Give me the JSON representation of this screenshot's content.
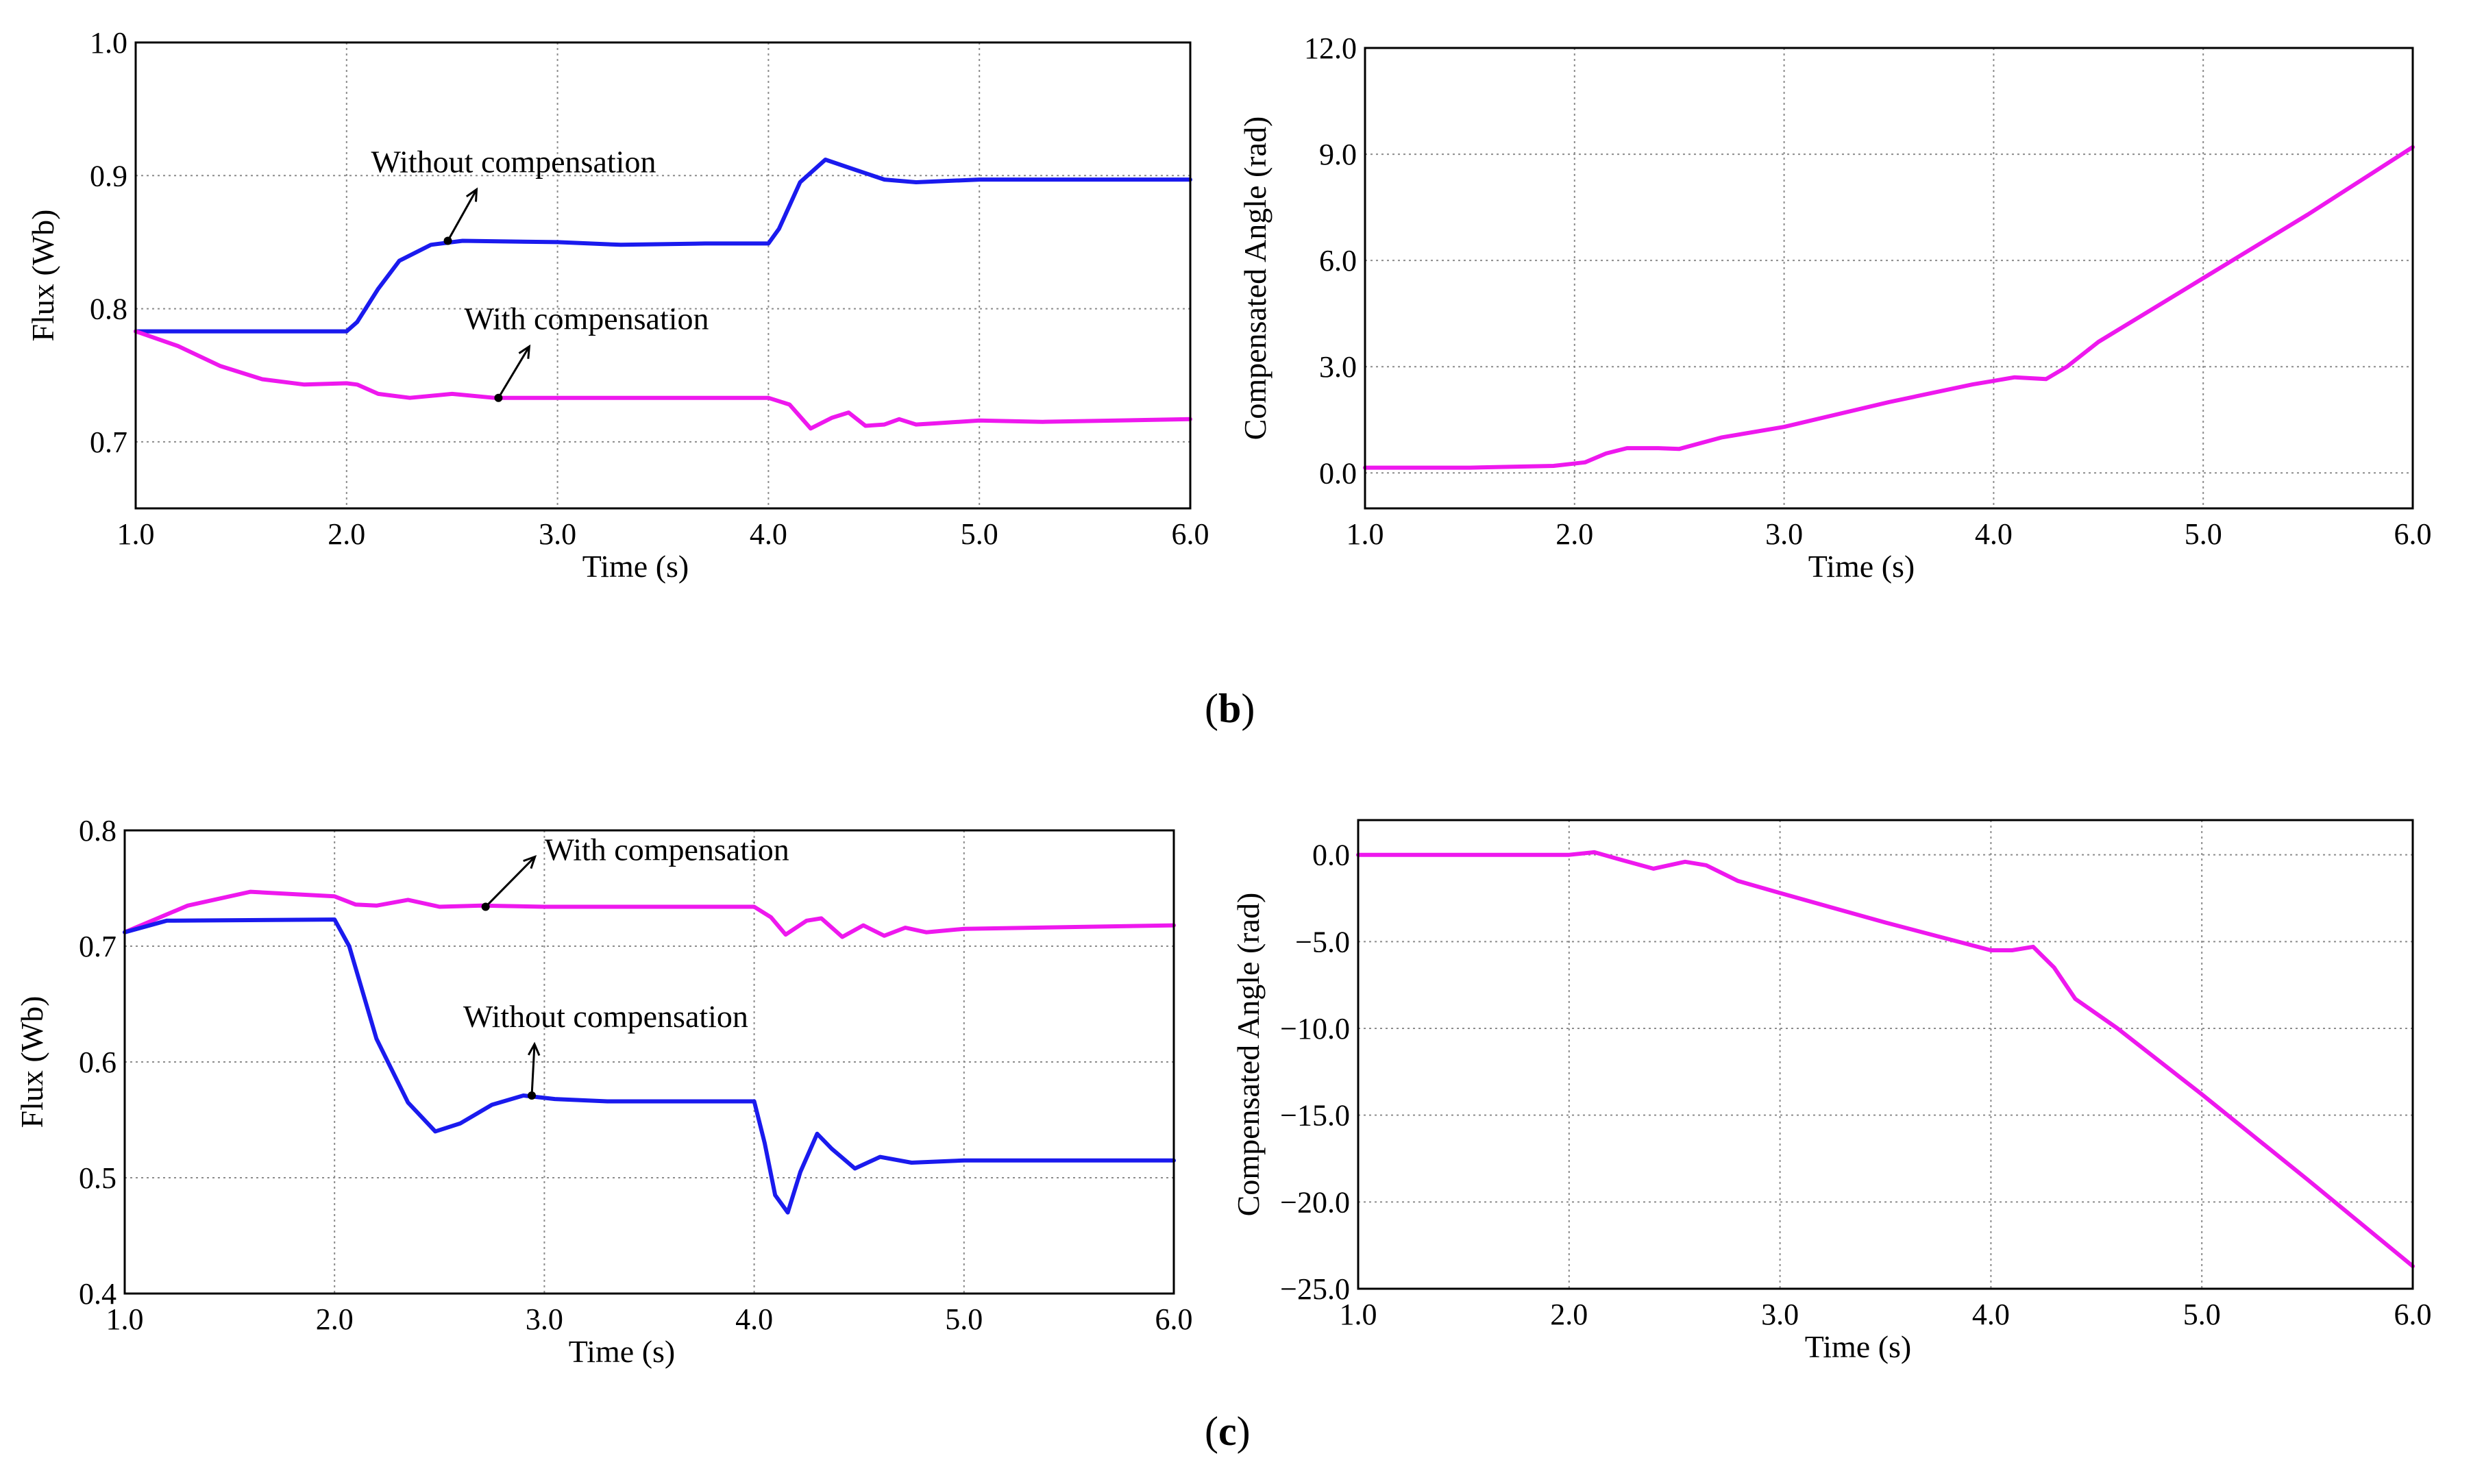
{
  "figure": {
    "caption_b": "b",
    "caption_c": "c"
  },
  "colors": {
    "blue": "#1a1aee",
    "magenta": "#ee18ee",
    "grid": "#8c8c8c"
  },
  "chart_data": [
    {
      "id": "b-flux",
      "type": "line",
      "xlabel": "Time (s)",
      "ylabel": "Flux (Wb)",
      "xlim": [
        1.0,
        6.0
      ],
      "ylim": [
        0.65,
        1.0
      ],
      "xticks": [
        1.0,
        2.0,
        3.0,
        4.0,
        5.0,
        6.0
      ],
      "xtick_labels": [
        "1.0",
        "2.0",
        "3.0",
        "4.0",
        "5.0",
        "6.0"
      ],
      "yticks": [
        0.7,
        0.8,
        0.9,
        1.0
      ],
      "ytick_labels": [
        "0.7",
        "0.8",
        "0.9",
        "1.0"
      ],
      "series": [
        {
          "name": "Without compensation",
          "color": "blue",
          "x": [
            1.0,
            2.0,
            2.05,
            2.15,
            2.25,
            2.4,
            2.55,
            3.0,
            3.3,
            3.7,
            4.0,
            4.05,
            4.15,
            4.27,
            4.4,
            4.55,
            4.7,
            5.0,
            6.0
          ],
          "y": [
            0.783,
            0.783,
            0.79,
            0.815,
            0.836,
            0.848,
            0.851,
            0.85,
            0.848,
            0.849,
            0.849,
            0.86,
            0.895,
            0.912,
            0.905,
            0.897,
            0.895,
            0.897,
            0.897
          ]
        },
        {
          "name": "With compensation",
          "color": "magenta",
          "x": [
            1.0,
            1.2,
            1.4,
            1.6,
            1.8,
            2.0,
            2.05,
            2.15,
            2.3,
            2.5,
            2.7,
            3.0,
            4.0,
            4.1,
            4.2,
            4.3,
            4.38,
            4.46,
            4.55,
            4.62,
            4.7,
            4.8,
            5.0,
            5.3,
            6.0
          ],
          "y": [
            0.783,
            0.772,
            0.757,
            0.747,
            0.743,
            0.744,
            0.743,
            0.736,
            0.733,
            0.736,
            0.733,
            0.733,
            0.733,
            0.728,
            0.71,
            0.718,
            0.722,
            0.712,
            0.713,
            0.717,
            0.713,
            0.714,
            0.716,
            0.715,
            0.717
          ]
        }
      ],
      "annotations": [
        {
          "text": "Without compensation",
          "x": 2.48,
          "y": 0.851
        },
        {
          "text": "With compensation",
          "x": 2.72,
          "y": 0.733
        }
      ]
    },
    {
      "id": "b-angle",
      "type": "line",
      "xlabel": "Time (s)",
      "ylabel": "Compensated Angle (rad)",
      "xlim": [
        1.0,
        6.0
      ],
      "ylim": [
        -1.0,
        12.0
      ],
      "xticks": [
        1.0,
        2.0,
        3.0,
        4.0,
        5.0,
        6.0
      ],
      "xtick_labels": [
        "1.0",
        "2.0",
        "3.0",
        "4.0",
        "5.0",
        "6.0"
      ],
      "yticks": [
        0.0,
        3.0,
        6.0,
        9.0,
        12.0
      ],
      "ytick_labels": [
        "0.0",
        "3.0",
        "6.0",
        "9.0",
        "12.0"
      ],
      "series": [
        {
          "name": "Compensated Angle",
          "color": "magenta",
          "x": [
            1.0,
            1.5,
            1.9,
            2.05,
            2.15,
            2.25,
            2.4,
            2.5,
            2.7,
            3.0,
            3.5,
            3.9,
            4.0,
            4.1,
            4.25,
            4.35,
            4.5,
            5.0,
            5.5,
            6.0
          ],
          "y": [
            0.15,
            0.15,
            0.2,
            0.3,
            0.55,
            0.7,
            0.7,
            0.68,
            1.0,
            1.3,
            2.0,
            2.5,
            2.6,
            2.7,
            2.65,
            3.0,
            3.7,
            5.5,
            7.3,
            9.2
          ]
        }
      ]
    },
    {
      "id": "c-flux",
      "type": "line",
      "xlabel": "Time (s)",
      "ylabel": "Flux (Wb)",
      "xlim": [
        1.0,
        6.0
      ],
      "ylim": [
        0.4,
        0.8
      ],
      "xticks": [
        1.0,
        2.0,
        3.0,
        4.0,
        5.0,
        6.0
      ],
      "xtick_labels": [
        "1.0",
        "2.0",
        "3.0",
        "4.0",
        "5.0",
        "6.0"
      ],
      "yticks": [
        0.4,
        0.5,
        0.6,
        0.7,
        0.8
      ],
      "ytick_labels": [
        "0.4",
        "0.5",
        "0.6",
        "0.7",
        "0.8"
      ],
      "series": [
        {
          "name": "With compensation",
          "color": "magenta",
          "x": [
            1.0,
            1.3,
            1.6,
            1.8,
            2.0,
            2.1,
            2.2,
            2.35,
            2.5,
            2.7,
            3.0,
            4.0,
            4.08,
            4.15,
            4.25,
            4.32,
            4.42,
            4.52,
            4.62,
            4.72,
            4.82,
            5.0,
            6.0
          ],
          "y": [
            0.712,
            0.735,
            0.747,
            0.745,
            0.743,
            0.736,
            0.735,
            0.74,
            0.734,
            0.735,
            0.734,
            0.734,
            0.725,
            0.71,
            0.722,
            0.724,
            0.708,
            0.718,
            0.709,
            0.716,
            0.712,
            0.715,
            0.718
          ]
        },
        {
          "name": "Without compensation",
          "color": "blue",
          "x": [
            1.0,
            1.2,
            2.0,
            2.07,
            2.2,
            2.35,
            2.48,
            2.6,
            2.75,
            2.9,
            3.05,
            3.3,
            4.0,
            4.05,
            4.1,
            4.16,
            4.22,
            4.3,
            4.37,
            4.48,
            4.6,
            4.75,
            5.0,
            6.0
          ],
          "y": [
            0.712,
            0.722,
            0.723,
            0.7,
            0.62,
            0.565,
            0.54,
            0.547,
            0.563,
            0.571,
            0.568,
            0.566,
            0.566,
            0.53,
            0.485,
            0.47,
            0.505,
            0.538,
            0.525,
            0.508,
            0.518,
            0.513,
            0.515,
            0.515
          ]
        }
      ],
      "annotations": [
        {
          "text": "With compensation",
          "x": 2.72,
          "y": 0.734
        },
        {
          "text": "Without compensation",
          "x": 2.94,
          "y": 0.571
        }
      ]
    },
    {
      "id": "c-angle",
      "type": "line",
      "xlabel": "Time (s)",
      "ylabel": "Compensated Angle (rad)",
      "xlim": [
        1.0,
        6.0
      ],
      "ylim": [
        -25.0,
        2.0
      ],
      "xticks": [
        1.0,
        2.0,
        3.0,
        4.0,
        5.0,
        6.0
      ],
      "xtick_labels": [
        "1.0",
        "2.0",
        "3.0",
        "4.0",
        "5.0",
        "6.0"
      ],
      "yticks": [
        0.0,
        -5.0,
        -10.0,
        -15.0,
        -20.0,
        -25.0
      ],
      "ytick_labels": [
        "0.0",
        "−5.0",
        "−10.0",
        "−15.0",
        "−20.0",
        "−25.0"
      ],
      "series": [
        {
          "name": "Compensated Angle",
          "color": "magenta",
          "x": [
            1.0,
            2.0,
            2.12,
            2.25,
            2.4,
            2.55,
            2.65,
            2.8,
            3.0,
            3.5,
            4.0,
            4.1,
            4.2,
            4.3,
            4.4,
            4.6,
            5.0,
            5.5,
            6.0
          ],
          "y": [
            0.0,
            0.0,
            0.15,
            -0.3,
            -0.8,
            -0.4,
            -0.6,
            -1.5,
            -2.2,
            -3.9,
            -5.5,
            -5.5,
            -5.3,
            -6.5,
            -8.3,
            -10.0,
            -13.8,
            -18.7,
            -23.7
          ]
        }
      ]
    }
  ]
}
